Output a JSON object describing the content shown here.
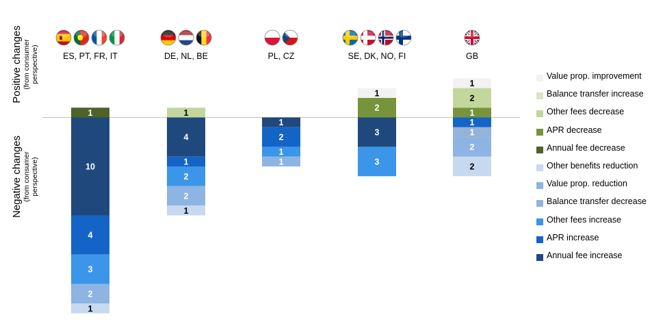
{
  "axis_labels": {
    "positive_main": "Positive changes",
    "positive_sub": "(from consumer perspective)",
    "negative_main": "Negative changes",
    "negative_sub": "(from consumer perspective)"
  },
  "colors": {
    "Value prop. improvement": "#f2f2f2",
    "Balance transfer increase": "#d7e4bd",
    "Other fees decrease": "#c3d69b",
    "APR decrease": "#77933c",
    "Annual fee decrease": "#4f6228",
    "Other benefits reduction": "#c6d9f1",
    "Value prop. reduction": "#8db4e2",
    "Balance transfer decrease": "#95b3d7",
    "Other fees increase": "#3b95e8",
    "APR increase": "#1464c8",
    "Annual fee increase": "#1f497d"
  },
  "legend": [
    "Value prop. improvement",
    "Balance transfer increase",
    "Other fees decrease",
    "APR decrease",
    "Annual fee decrease",
    "Other benefits reduction",
    "Value prop. reduction",
    "Balance transfer decrease",
    "Other fees increase",
    "APR increase",
    "Annual fee increase"
  ],
  "chart_data": {
    "type": "bar",
    "stacked": true,
    "baseline": 0,
    "categories": [
      "ES, PT, FR, IT",
      "DE, NL, BE",
      "PL, CZ",
      "SE, DK, NO, FI",
      "GB"
    ],
    "flags": [
      [
        "Spain",
        "Portugal",
        "France",
        "Italy"
      ],
      [
        "Germany",
        "Netherlands",
        "Belgium"
      ],
      [
        "Poland",
        "Czech Republic"
      ],
      [
        "Sweden",
        "Denmark",
        "Norway",
        "Finland"
      ],
      [
        "United Kingdom"
      ]
    ],
    "positive": [
      [
        {
          "series": "Annual fee decrease",
          "value": 1
        }
      ],
      [
        {
          "series": "Other fees decrease",
          "value": 1
        }
      ],
      [],
      [
        {
          "series": "APR decrease",
          "value": 2
        },
        {
          "series": "Value prop. improvement",
          "value": 1
        }
      ],
      [
        {
          "series": "APR decrease",
          "value": 1
        },
        {
          "series": "Other fees decrease",
          "value": 2
        },
        {
          "series": "Value prop. improvement",
          "value": 1
        }
      ]
    ],
    "negative": [
      [
        {
          "series": "Annual fee increase",
          "value": 10
        },
        {
          "series": "APR increase",
          "value": 4
        },
        {
          "series": "Other fees increase",
          "value": 3
        },
        {
          "series": "Value prop. reduction",
          "value": 2
        },
        {
          "series": "Other benefits reduction",
          "value": 1
        }
      ],
      [
        {
          "series": "Annual fee increase",
          "value": 4
        },
        {
          "series": "APR increase",
          "value": 1
        },
        {
          "series": "Other fees increase",
          "value": 2
        },
        {
          "series": "Value prop. reduction",
          "value": 2
        },
        {
          "series": "Other benefits reduction",
          "value": 1
        }
      ],
      [
        {
          "series": "Annual fee increase",
          "value": 1
        },
        {
          "series": "APR increase",
          "value": 2
        },
        {
          "series": "Other fees increase",
          "value": 1
        },
        {
          "series": "Value prop. reduction",
          "value": 1
        }
      ],
      [
        {
          "series": "Annual fee increase",
          "value": 3
        },
        {
          "series": "Other fees increase",
          "value": 3
        }
      ],
      [
        {
          "series": "APR increase",
          "value": 1
        },
        {
          "series": "Balance transfer decrease",
          "value": 1
        },
        {
          "series": "Value prop. reduction",
          "value": 2
        },
        {
          "series": "Other benefits reduction",
          "value": 2
        }
      ]
    ]
  }
}
